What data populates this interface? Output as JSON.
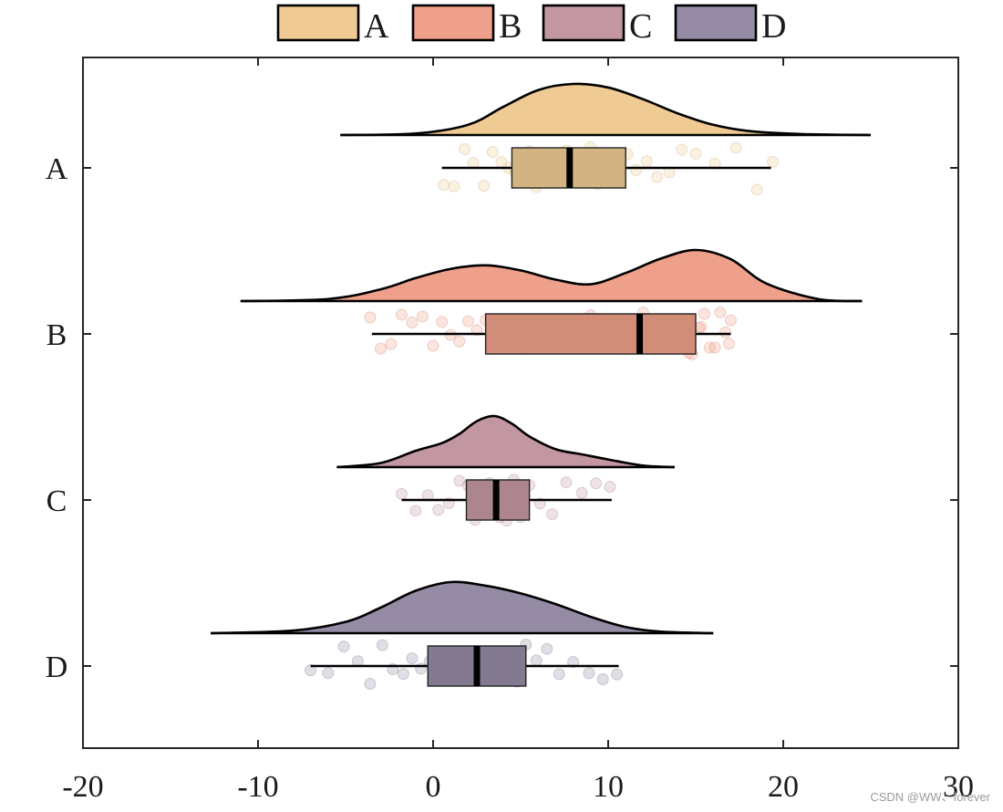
{
  "chart_data": {
    "type": "raincloud",
    "orientation": "horizontal",
    "xlim": [
      -20,
      30
    ],
    "xticks": [
      -20,
      -10,
      0,
      10,
      20,
      30
    ],
    "grid": false,
    "legend": {
      "position": "top",
      "entries": [
        "A",
        "B",
        "C",
        "D"
      ]
    },
    "categories": [
      "A",
      "B",
      "C",
      "D"
    ],
    "series": [
      {
        "name": "A",
        "color": "#EFCB93",
        "box": {
          "whisker_low": 0.5,
          "q1": 4.5,
          "median": 7.8,
          "q3": 11.0,
          "whisker_high": 19.3
        },
        "density": {
          "x": [
            -5.3,
            -1,
            2,
            4,
            6,
            8,
            10,
            12,
            14,
            16,
            18,
            21,
            25
          ],
          "y": [
            0,
            0.03,
            0.2,
            0.55,
            0.88,
            1,
            0.93,
            0.7,
            0.42,
            0.2,
            0.08,
            0.02,
            0
          ]
        },
        "points": [
          0.6,
          1.2,
          1.8,
          2.3,
          2.9,
          3.4,
          3.9,
          4.3,
          4.7,
          5.1,
          5.5,
          5.9,
          6.2,
          6.6,
          7.0,
          7.3,
          7.6,
          8.0,
          8.3,
          8.7,
          9.0,
          9.4,
          9.8,
          10.2,
          10.6,
          11.1,
          11.6,
          12.2,
          12.8,
          13.5,
          14.2,
          15.0,
          16.1,
          17.3,
          18.5,
          19.4
        ]
      },
      {
        "name": "B",
        "color": "#EFA08A",
        "box": {
          "whisker_low": -3.5,
          "q1": 3.0,
          "median": 11.8,
          "q3": 15.0,
          "whisker_high": 17.0
        },
        "density": {
          "x": [
            -11,
            -6,
            -3,
            -1,
            1,
            3,
            5,
            7,
            9,
            11,
            13,
            15,
            17,
            19,
            22,
            24.5
          ],
          "y": [
            0,
            0.04,
            0.23,
            0.45,
            0.63,
            0.7,
            0.6,
            0.42,
            0.33,
            0.55,
            0.83,
            1,
            0.82,
            0.35,
            0.04,
            0
          ]
        },
        "points": [
          -3.6,
          -3.0,
          -2.4,
          -1.8,
          -1.2,
          -0.6,
          0.0,
          0.5,
          1.0,
          1.5,
          2.0,
          2.5,
          3.0,
          3.5,
          4.1,
          4.7,
          5.3,
          6.0,
          7.0,
          8.0,
          9.0,
          10.0,
          11.0,
          12.0,
          12.6,
          13.1,
          13.6,
          14.0,
          14.4,
          14.8,
          15.2,
          15.5,
          15.8,
          16.1,
          16.4,
          16.7,
          17.0,
          16.9,
          15.3,
          14.6
        ]
      },
      {
        "name": "C",
        "color": "#C397A1",
        "box": {
          "whisker_low": -1.8,
          "q1": 1.9,
          "median": 3.6,
          "q3": 5.5,
          "whisker_high": 10.2
        },
        "density": {
          "x": [
            -5.5,
            -3,
            -1,
            0.5,
            1.5,
            2.5,
            3.5,
            4.5,
            5.5,
            7,
            8.5,
            10,
            12,
            13.8
          ],
          "y": [
            0,
            0.08,
            0.32,
            0.47,
            0.65,
            0.9,
            1,
            0.85,
            0.6,
            0.35,
            0.25,
            0.15,
            0.03,
            0
          ]
        },
        "points": [
          -1.8,
          -1.0,
          -0.3,
          0.3,
          0.9,
          1.5,
          2.0,
          2.4,
          2.8,
          3.2,
          3.5,
          3.8,
          4.2,
          4.6,
          5.0,
          5.5,
          6.1,
          6.8,
          7.6,
          8.5,
          9.3,
          10.1
        ]
      },
      {
        "name": "D",
        "color": "#958BA5",
        "box": {
          "whisker_low": -7.0,
          "q1": -0.3,
          "median": 2.5,
          "q3": 5.3,
          "whisker_high": 10.6
        },
        "density": {
          "x": [
            -12.7,
            -8,
            -5,
            -3,
            -1,
            1,
            3,
            5,
            7,
            9,
            11,
            13,
            16
          ],
          "y": [
            0,
            0.05,
            0.22,
            0.5,
            0.83,
            1,
            0.93,
            0.78,
            0.57,
            0.32,
            0.12,
            0.03,
            0
          ]
        },
        "points": [
          -7.0,
          -6.0,
          -5.1,
          -4.3,
          -3.6,
          -2.9,
          -2.3,
          -1.7,
          -1.2,
          -0.7,
          -0.2,
          0.3,
          0.8,
          1.3,
          1.8,
          2.2,
          2.6,
          3.0,
          3.4,
          3.8,
          4.3,
          4.8,
          5.3,
          5.9,
          6.5,
          7.2,
          8.0,
          8.9,
          9.7,
          10.5
        ]
      }
    ]
  },
  "watermark": "CSDN @WW、forever"
}
